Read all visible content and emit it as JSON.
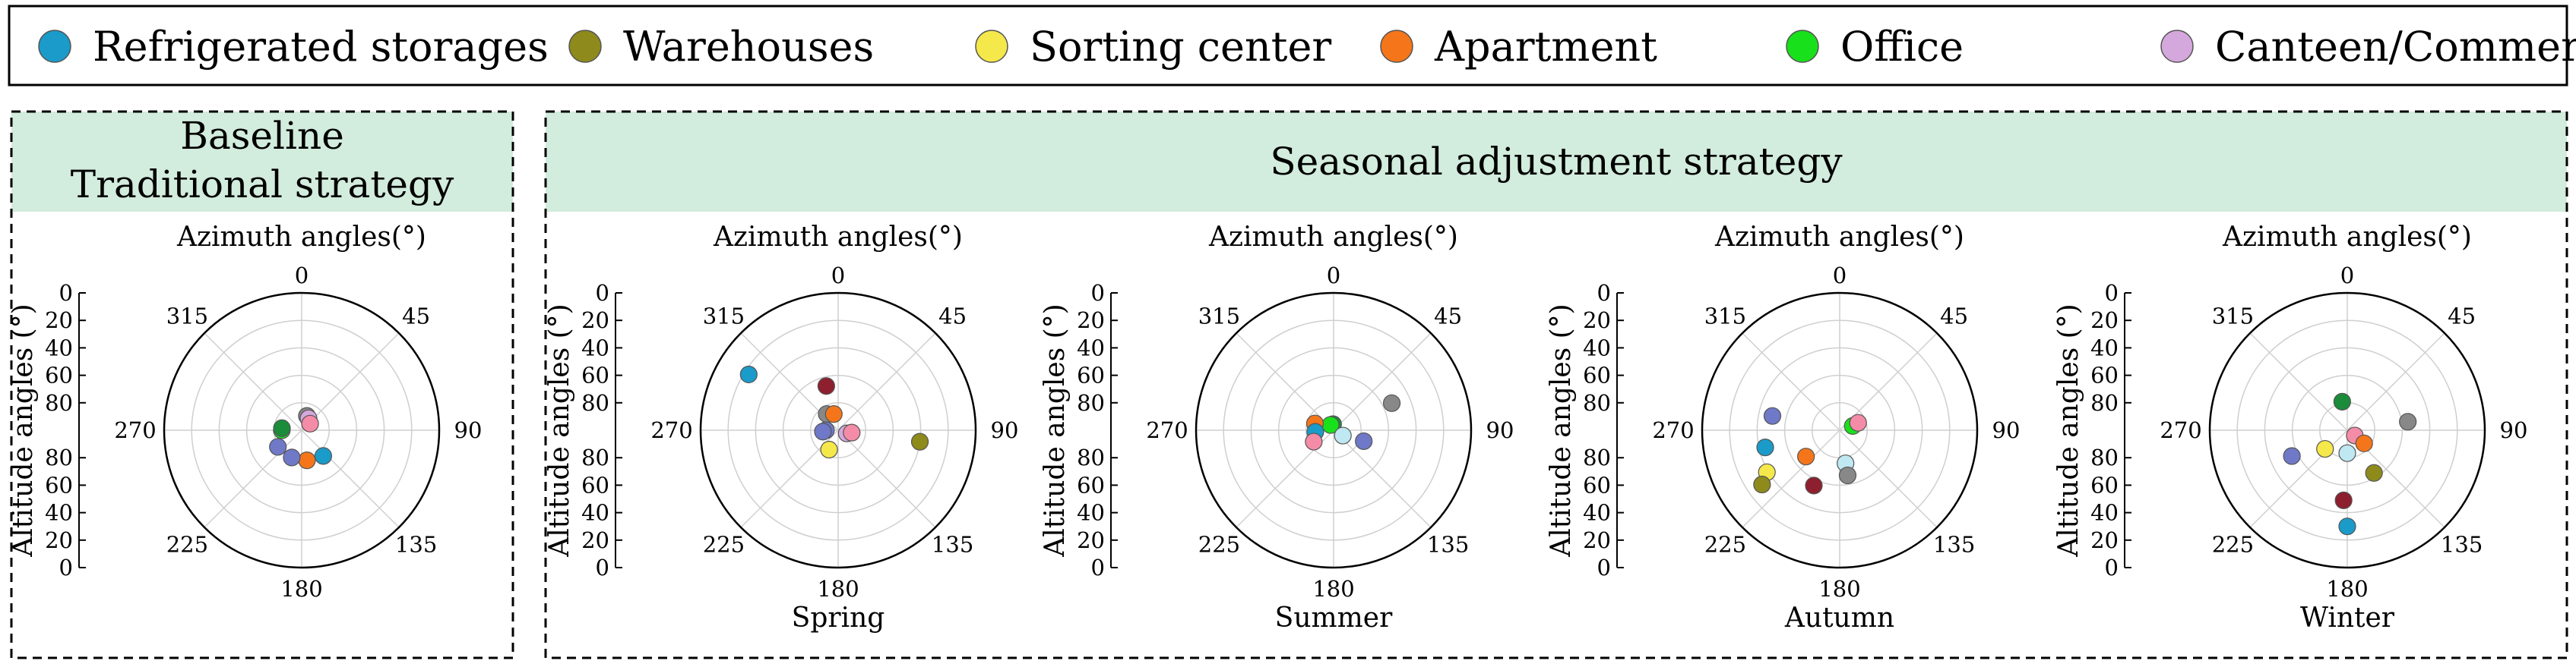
{
  "legend": [
    {
      "label": "Refrigerated storages",
      "color": "#1a9bc9"
    },
    {
      "label": "Warehouses",
      "color": "#8e8a1c"
    },
    {
      "label": "Sorting center",
      "color": "#f5e84a"
    },
    {
      "label": "Apartment",
      "color": "#f5761a"
    },
    {
      "label": "Office",
      "color": "#18e01a"
    },
    {
      "label": "Canteen/Commercial",
      "color": "#d4a8dc"
    }
  ],
  "panels": {
    "baseline_title_line1": "Baseline",
    "baseline_title_line2": "Traditional strategy",
    "seasonal_title": "Seasonal adjustment strategy",
    "header_fill": "#d2ecdd"
  },
  "labels": {
    "azimuth_title": "Azimuth angles(°)",
    "altitude_title": "Altitude angles (°)",
    "azimuth_ticks": [
      "0",
      "45",
      "90",
      "135",
      "180",
      "225",
      "270",
      "315"
    ],
    "altitude_ticks_upper": [
      "0",
      "20",
      "40",
      "60",
      "80"
    ],
    "altitude_ticks_lower": [
      "80",
      "60",
      "40",
      "20",
      "0"
    ]
  },
  "chart_data": [
    {
      "type": "scatter",
      "name": "Baseline",
      "caption": "",
      "coordinate_system": "polar",
      "theta_unit": "azimuth degrees clockwise from north",
      "r_unit": "90 minus altitude degrees",
      "r_max": 90,
      "points": [
        {
          "theta": 20,
          "r": 10,
          "color": "#888888"
        },
        {
          "theta": 30,
          "r": 9,
          "color": "#d4a8dc"
        },
        {
          "theta": 52,
          "r": 7,
          "color": "#f48ca8"
        },
        {
          "theta": 270,
          "r": 13,
          "color": "#18e01a"
        },
        {
          "theta": 276,
          "r": 13,
          "color": "#1a8c3a"
        },
        {
          "theta": 140,
          "r": 22,
          "color": "#1a9bc9"
        },
        {
          "theta": 170,
          "r": 20,
          "color": "#f5761a"
        },
        {
          "theta": 200,
          "r": 19,
          "color": "#6f79c8"
        },
        {
          "theta": 235,
          "r": 19,
          "color": "#6f79c8"
        }
      ]
    },
    {
      "type": "scatter",
      "name": "Spring",
      "caption": "Spring",
      "coordinate_system": "polar",
      "theta_unit": "azimuth degrees clockwise from north",
      "r_unit": "90 minus altitude degrees",
      "r_max": 90,
      "points": [
        {
          "theta": 302,
          "r": 69,
          "color": "#1a9bc9"
        },
        {
          "theta": 345,
          "r": 30,
          "color": "#8e1f2e"
        },
        {
          "theta": 325,
          "r": 13,
          "color": "#888888"
        },
        {
          "theta": 345,
          "r": 11,
          "color": "#f5761a"
        },
        {
          "theta": 270,
          "r": 8,
          "color": "#6f79c8"
        },
        {
          "theta": 265,
          "r": 10,
          "color": "#6f79c8"
        },
        {
          "theta": 110,
          "r": 6,
          "color": "#d4a8dc"
        },
        {
          "theta": 100,
          "r": 9,
          "color": "#f48ca8"
        },
        {
          "theta": 98,
          "r": 54,
          "color": "#8e8a1c"
        },
        {
          "theta": 205,
          "r": 14,
          "color": "#f5e84a"
        }
      ]
    },
    {
      "type": "scatter",
      "name": "Summer",
      "caption": "Summer",
      "coordinate_system": "polar",
      "theta_unit": "azimuth degrees clockwise from north",
      "r_unit": "90 minus altitude degrees",
      "r_max": 90,
      "points": [
        {
          "theta": 65,
          "r": 42,
          "color": "#888888"
        },
        {
          "theta": 355,
          "r": 4,
          "color": "#1a8c3a"
        },
        {
          "theta": 330,
          "r": 4,
          "color": "#18e01a"
        },
        {
          "theta": 290,
          "r": 13,
          "color": "#f5761a"
        },
        {
          "theta": 265,
          "r": 12,
          "color": "#1a9bc9"
        },
        {
          "theta": 240,
          "r": 15,
          "color": "#f48ca8"
        },
        {
          "theta": 120,
          "r": 7,
          "color": "#bfe8f2"
        },
        {
          "theta": 110,
          "r": 21,
          "color": "#6f79c8"
        }
      ]
    },
    {
      "type": "scatter",
      "name": "Autumn",
      "caption": "Autumn",
      "coordinate_system": "polar",
      "theta_unit": "azimuth degrees clockwise from north",
      "r_unit": "90 minus altitude degrees",
      "r_max": 90,
      "points": [
        {
          "theta": 72,
          "r": 9,
          "color": "#18e01a"
        },
        {
          "theta": 68,
          "r": 13,
          "color": "#f48ca8"
        },
        {
          "theta": 282,
          "r": 45,
          "color": "#6f79c8"
        },
        {
          "theta": 257,
          "r": 50,
          "color": "#1a9bc9"
        },
        {
          "theta": 240,
          "r": 55,
          "color": "#f5e84a"
        },
        {
          "theta": 235,
          "r": 62,
          "color": "#8e8a1c"
        },
        {
          "theta": 232,
          "r": 28,
          "color": "#f5761a"
        },
        {
          "theta": 205,
          "r": 40,
          "color": "#8e1f2e"
        },
        {
          "theta": 170,
          "r": 22,
          "color": "#bfe8f2"
        },
        {
          "theta": 170,
          "r": 30,
          "color": "#888888"
        }
      ]
    },
    {
      "type": "scatter",
      "name": "Winter",
      "caption": "Winter",
      "coordinate_system": "polar",
      "theta_unit": "azimuth degrees clockwise from north",
      "r_unit": "90 minus altitude degrees",
      "r_max": 90,
      "points": [
        {
          "theta": 350,
          "r": 19,
          "color": "#1a8c3a"
        },
        {
          "theta": 82,
          "r": 40,
          "color": "#888888"
        },
        {
          "theta": 125,
          "r": 6,
          "color": "#f48ca8"
        },
        {
          "theta": 128,
          "r": 14,
          "color": "#f5761a"
        },
        {
          "theta": 148,
          "r": 33,
          "color": "#8e8a1c"
        },
        {
          "theta": 180,
          "r": 15,
          "color": "#bfe8f2"
        },
        {
          "theta": 230,
          "r": 19,
          "color": "#f5e84a"
        },
        {
          "theta": 245,
          "r": 40,
          "color": "#6f79c8"
        },
        {
          "theta": 183,
          "r": 46,
          "color": "#8e1f2e"
        },
        {
          "theta": 180,
          "r": 63,
          "color": "#1a9bc9"
        }
      ]
    }
  ]
}
